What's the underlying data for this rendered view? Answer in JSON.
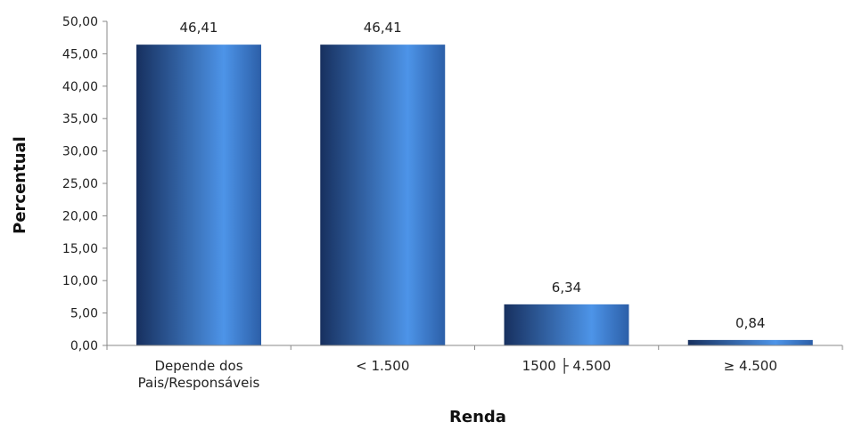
{
  "chart_data": {
    "type": "bar",
    "categories": [
      [
        "Depende dos",
        "Pais/Responsáveis"
      ],
      [
        "< 1.500"
      ],
      [
        "1500 ├ 4.500"
      ],
      [
        "≥ 4.500"
      ]
    ],
    "values": [
      46.41,
      46.41,
      6.34,
      0.84
    ],
    "data_labels": [
      "46,41",
      "46,41",
      "6,34",
      "0,84"
    ],
    "yticks": [
      "0,00",
      "5,00",
      "10,00",
      "15,00",
      "20,00",
      "25,00",
      "30,00",
      "35,00",
      "40,00",
      "45,00",
      "50,00"
    ],
    "ylim": [
      0,
      50
    ],
    "xlabel": "Renda",
    "ylabel": "Percentual",
    "grid": false,
    "colors": {
      "bar_dark": "#17305f",
      "bar_light": "#4d94e8",
      "axis": "#888888"
    }
  }
}
